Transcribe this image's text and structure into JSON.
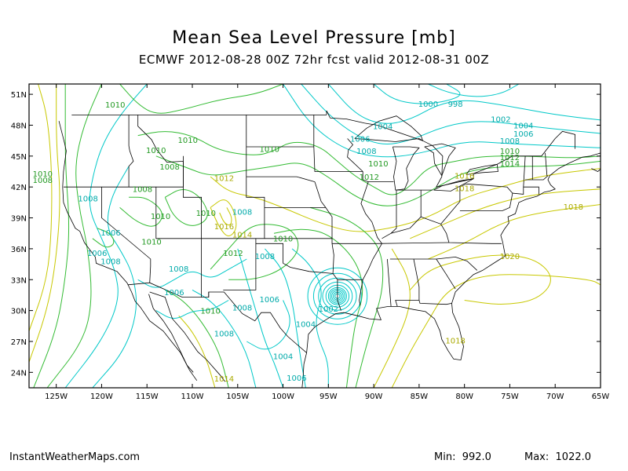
{
  "title": "Mean Sea Level Pressure [mb]",
  "subtitle": "ECMWF 2012-08-28 00Z 72hr fcst valid 2012-08-31 00Z",
  "footer": {
    "credit": "InstantWeatherMaps.com",
    "min_label": "Min:",
    "min_value": "992.0",
    "max_label": "Max:",
    "max_value": "1022.0"
  },
  "axes": {
    "lat_labels": [
      "51N",
      "48N",
      "45N",
      "42N",
      "39N",
      "36N",
      "33N",
      "30N",
      "27N",
      "24N"
    ],
    "lat_values": [
      51,
      48,
      45,
      42,
      39,
      36,
      33,
      30,
      27,
      24
    ],
    "lon_labels": [
      "125W",
      "120W",
      "115W",
      "110W",
      "105W",
      "100W",
      "95W",
      "90W",
      "85W",
      "80W",
      "75W",
      "70W",
      "65W"
    ],
    "lon_values": [
      -125,
      -120,
      -115,
      -110,
      -105,
      -100,
      -95,
      -90,
      -85,
      -80,
      -75,
      -70,
      -65
    ],
    "lon_range": [
      -128,
      -65
    ],
    "lat_range": [
      22.5,
      52
    ]
  },
  "colors": {
    "low": "#00c8c8",
    "mid": "#33bb33",
    "high": "#c8c800",
    "border": "#000000",
    "text_low": "#00aaaa",
    "text_mid": "#229922",
    "text_high": "#aaaa00"
  },
  "isobar_labels": [
    {
      "text": "1010",
      "lon": -118.5,
      "lat": 49.7,
      "c": "mid"
    },
    {
      "text": "1010",
      "lon": -110.5,
      "lat": 46.3,
      "c": "mid"
    },
    {
      "text": "1010",
      "lon": -114.0,
      "lat": 45.3,
      "c": "mid"
    },
    {
      "text": "1008",
      "lon": -112.5,
      "lat": 43.7,
      "c": "mid"
    },
    {
      "text": "1010",
      "lon": -126.5,
      "lat": 43.0,
      "c": "mid"
    },
    {
      "text": "1008",
      "lon": -126.5,
      "lat": 42.4,
      "c": "mid"
    },
    {
      "text": "1008",
      "lon": -115.5,
      "lat": 41.5,
      "c": "mid"
    },
    {
      "text": "1008",
      "lon": -121.5,
      "lat": 40.6,
      "c": "low"
    },
    {
      "text": "1006",
      "lon": -119.0,
      "lat": 37.3,
      "c": "low"
    },
    {
      "text": "1006",
      "lon": -120.5,
      "lat": 35.3,
      "c": "low"
    },
    {
      "text": "1008",
      "lon": -119.0,
      "lat": 34.5,
      "c": "low"
    },
    {
      "text": "1008",
      "lon": -111.5,
      "lat": 33.8,
      "c": "low"
    },
    {
      "text": "1006",
      "lon": -112.0,
      "lat": 31.5,
      "c": "low"
    },
    {
      "text": "1010",
      "lon": -113.5,
      "lat": 38.9,
      "c": "mid"
    },
    {
      "text": "1010",
      "lon": -108.5,
      "lat": 39.2,
      "c": "mid"
    },
    {
      "text": "1010",
      "lon": -114.5,
      "lat": 36.4,
      "c": "mid"
    },
    {
      "text": "1012",
      "lon": -106.5,
      "lat": 42.6,
      "c": "high"
    },
    {
      "text": "1016",
      "lon": -106.5,
      "lat": 37.9,
      "c": "high"
    },
    {
      "text": "1014",
      "lon": -104.5,
      "lat": 37.1,
      "c": "high"
    },
    {
      "text": "1012",
      "lon": -105.5,
      "lat": 35.3,
      "c": "mid"
    },
    {
      "text": "1008",
      "lon": -104.5,
      "lat": 39.3,
      "c": "low"
    },
    {
      "text": "1010",
      "lon": -101.5,
      "lat": 45.4,
      "c": "mid"
    },
    {
      "text": "1012",
      "lon": -90.5,
      "lat": 42.7,
      "c": "mid"
    },
    {
      "text": "1010",
      "lon": -89.5,
      "lat": 44.0,
      "c": "mid"
    },
    {
      "text": "1008",
      "lon": -90.8,
      "lat": 45.2,
      "c": "low"
    },
    {
      "text": "1006",
      "lon": -91.5,
      "lat": 46.4,
      "c": "low"
    },
    {
      "text": "1004",
      "lon": -89.0,
      "lat": 47.6,
      "c": "low"
    },
    {
      "text": "1000",
      "lon": -84.0,
      "lat": 49.8,
      "c": "low"
    },
    {
      "text": "998",
      "lon": -81.0,
      "lat": 49.8,
      "c": "low"
    },
    {
      "text": "1002",
      "lon": -76.0,
      "lat": 48.3,
      "c": "low"
    },
    {
      "text": "1004",
      "lon": -73.5,
      "lat": 47.7,
      "c": "low"
    },
    {
      "text": "1006",
      "lon": -73.5,
      "lat": 46.9,
      "c": "low"
    },
    {
      "text": "1008",
      "lon": -75.0,
      "lat": 46.2,
      "c": "low"
    },
    {
      "text": "1010",
      "lon": -75.0,
      "lat": 45.2,
      "c": "mid"
    },
    {
      "text": "1012",
      "lon": -75.0,
      "lat": 44.6,
      "c": "mid"
    },
    {
      "text": "1014",
      "lon": -75.0,
      "lat": 44.0,
      "c": "mid"
    },
    {
      "text": "1016",
      "lon": -80.0,
      "lat": 42.8,
      "c": "high"
    },
    {
      "text": "1018",
      "lon": -80.0,
      "lat": 41.6,
      "c": "high"
    },
    {
      "text": "1018",
      "lon": -68.0,
      "lat": 39.8,
      "c": "high"
    },
    {
      "text": "1020",
      "lon": -75.0,
      "lat": 35.0,
      "c": "high"
    },
    {
      "text": "1018",
      "lon": -81.0,
      "lat": 26.8,
      "c": "high"
    },
    {
      "text": "1010",
      "lon": -100.0,
      "lat": 36.7,
      "c": "mid"
    },
    {
      "text": "1008",
      "lon": -102.0,
      "lat": 35.0,
      "c": "low"
    },
    {
      "text": "1006",
      "lon": -101.5,
      "lat": 30.8,
      "c": "low"
    },
    {
      "text": "1008",
      "lon": -104.5,
      "lat": 30.0,
      "c": "low"
    },
    {
      "text": "1010",
      "lon": -108.0,
      "lat": 29.7,
      "c": "mid"
    },
    {
      "text": "1008",
      "lon": -106.5,
      "lat": 27.5,
      "c": "low"
    },
    {
      "text": "1004",
      "lon": -97.5,
      "lat": 28.4,
      "c": "low"
    },
    {
      "text": "1004",
      "lon": -100.0,
      "lat": 25.3,
      "c": "low"
    },
    {
      "text": "1006",
      "lon": -98.5,
      "lat": 23.2,
      "c": "low"
    },
    {
      "text": "1002",
      "lon": -95.0,
      "lat": 29.9,
      "c": "low"
    },
    {
      "text": "1014",
      "lon": -106.5,
      "lat": 23.1,
      "c": "high"
    }
  ]
}
